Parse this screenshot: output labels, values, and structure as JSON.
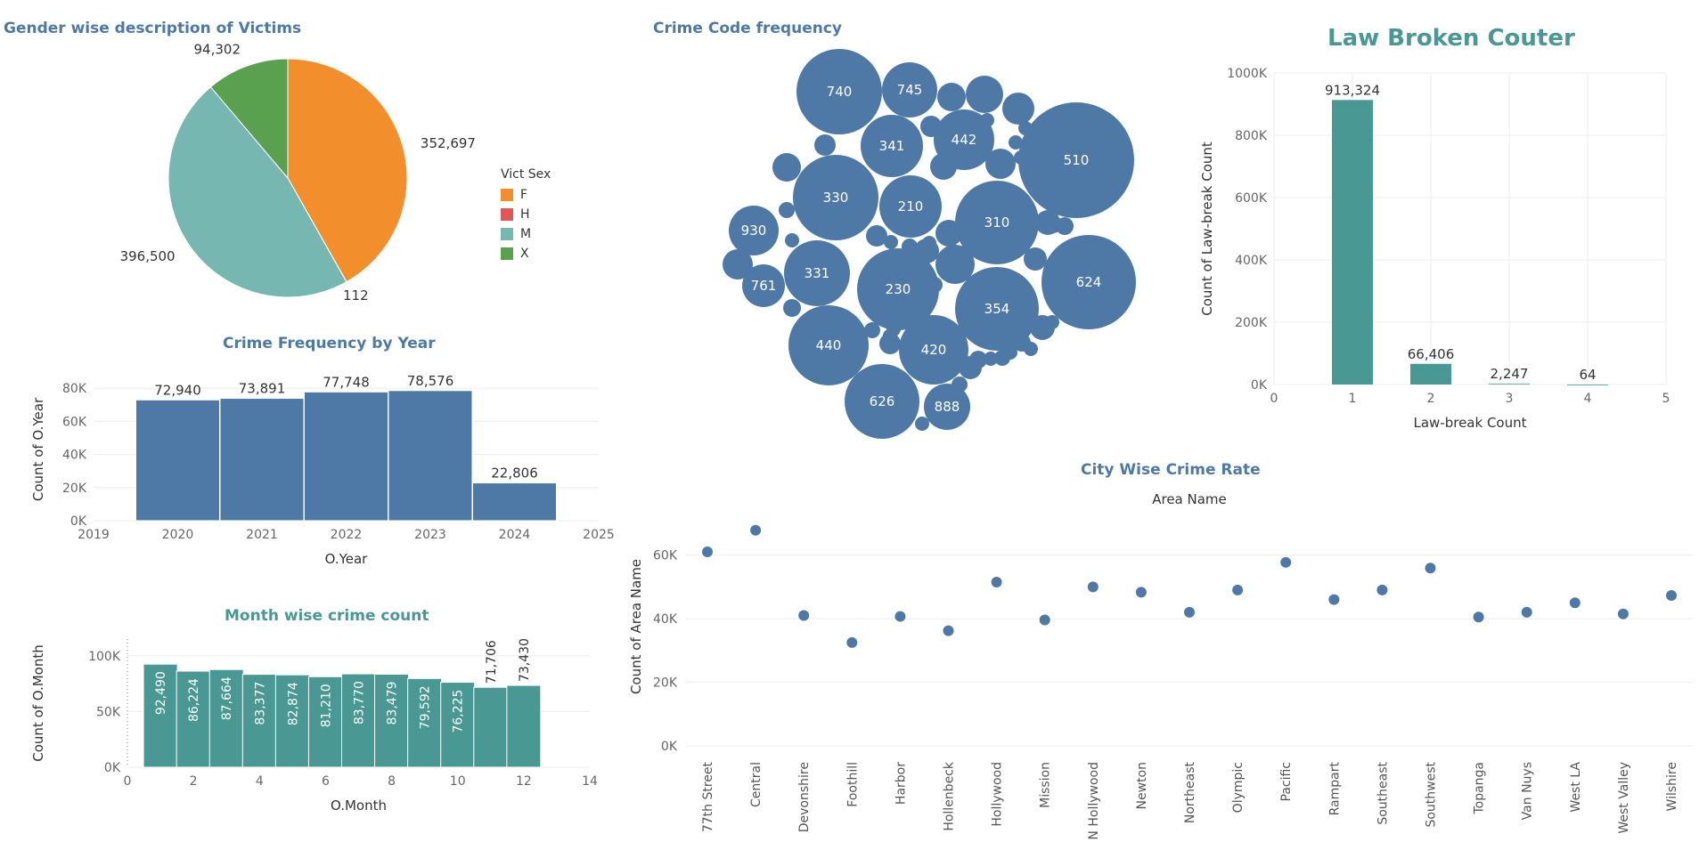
{
  "colors": {
    "title_blue": "#4E79A7",
    "title_teal": "#499894",
    "bar_blue": "#4E79A7",
    "bar_teal": "#499894",
    "grid": "#ececec",
    "axis_text": "#666666"
  },
  "titles": {
    "gender": "Gender wise description of Victims",
    "crime_code": "Crime Code frequency",
    "law": "Law Broken Couter",
    "year": "Crime Frequency by Year",
    "month": "Month wise crime count",
    "city": "City Wise Crime Rate"
  },
  "legend": {
    "title": "Vict Sex"
  },
  "chart_data": [
    {
      "id": "gender",
      "type": "pie",
      "title": "Gender wise description of Victims",
      "legend_title": "Vict Sex",
      "categories": [
        "F",
        "H",
        "M",
        "X"
      ],
      "values": [
        352697,
        112,
        396500,
        94302
      ],
      "labels": [
        "352,697",
        "112",
        "396,500",
        "94,302"
      ],
      "colors": [
        "#F28E2B",
        "#E15759",
        "#76B7B2",
        "#59A14F"
      ],
      "legend_placement": "right"
    },
    {
      "id": "crime_code",
      "type": "bubble",
      "title": "Crime Code frequency",
      "labeled_bubbles": [
        {
          "code": "510",
          "relative_size": 1.0
        },
        {
          "code": "624",
          "relative_size": 0.82
        },
        {
          "code": "354",
          "relative_size": 0.72
        },
        {
          "code": "330",
          "relative_size": 0.74
        },
        {
          "code": "230",
          "relative_size": 0.71
        },
        {
          "code": "740",
          "relative_size": 0.74
        },
        {
          "code": "440",
          "relative_size": 0.69
        },
        {
          "code": "626",
          "relative_size": 0.65
        },
        {
          "code": "310",
          "relative_size": 0.72
        },
        {
          "code": "420",
          "relative_size": 0.59
        },
        {
          "code": "331",
          "relative_size": 0.58
        },
        {
          "code": "210",
          "relative_size": 0.53
        },
        {
          "code": "341",
          "relative_size": 0.54
        },
        {
          "code": "442",
          "relative_size": 0.52
        },
        {
          "code": "745",
          "relative_size": 0.48
        },
        {
          "code": "930",
          "relative_size": 0.43
        },
        {
          "code": "888",
          "relative_size": 0.4
        },
        {
          "code": "761",
          "relative_size": 0.36
        }
      ],
      "unlabeled_bubbles": "many small crime codes"
    },
    {
      "id": "law",
      "type": "bar",
      "title": "Law Broken Couter",
      "x": [
        1,
        2,
        3,
        4
      ],
      "values": [
        913324,
        66406,
        2247,
        64
      ],
      "labels": [
        "913,324",
        "66,406",
        "2,247",
        "64"
      ],
      "xlabel": "Law-break Count",
      "ylabel": "Count of Law-break Count",
      "xlim": [
        0,
        5
      ],
      "ylim": [
        0,
        1000000
      ],
      "xticks": [
        "0",
        "1",
        "2",
        "3",
        "4",
        "5"
      ],
      "yticks": [
        "0K",
        "200K",
        "400K",
        "600K",
        "800K",
        "1000K"
      ],
      "grid": true
    },
    {
      "id": "year",
      "type": "bar",
      "title": "Crime Frequency by Year",
      "x": [
        2020,
        2021,
        2022,
        2023,
        2024
      ],
      "values": [
        72940,
        73891,
        77748,
        78576,
        22806
      ],
      "labels": [
        "72,940",
        "73,891",
        "77,748",
        "78,576",
        "22,806"
      ],
      "xlabel": "O.Year",
      "ylabel": "Count of O.Year",
      "xlim": [
        2019,
        2025
      ],
      "ylim": [
        0,
        86000
      ],
      "xticks": [
        "2019",
        "2020",
        "2021",
        "2022",
        "2023",
        "2024",
        "2025"
      ],
      "yticks": [
        "0K",
        "20K",
        "40K",
        "60K",
        "80K"
      ],
      "grid": true
    },
    {
      "id": "month",
      "type": "bar",
      "title": "Month wise crime count",
      "x": [
        1,
        2,
        3,
        4,
        5,
        6,
        7,
        8,
        9,
        10,
        11,
        12
      ],
      "values": [
        92490,
        86224,
        87664,
        83377,
        82874,
        81210,
        83770,
        83479,
        79592,
        76225,
        71706,
        73430
      ],
      "labels": [
        "92,490",
        "86,224",
        "87,664",
        "83,377",
        "82,874",
        "81,210",
        "83,770",
        "83,479",
        "79,592",
        "76,225",
        "71,706",
        "73,430"
      ],
      "xlabel": "O.Month",
      "ylabel": "Count of O.Month",
      "xlim": [
        0,
        14
      ],
      "ylim": [
        0,
        115000
      ],
      "xticks": [
        "0",
        "2",
        "4",
        "6",
        "8",
        "10",
        "12",
        "14"
      ],
      "yticks": [
        "0K",
        "50K",
        "100K"
      ],
      "grid": true
    },
    {
      "id": "city",
      "type": "scatter",
      "title": "City Wise Crime Rate",
      "column_header": "Area Name",
      "categories": [
        "77th Street",
        "Central",
        "Devonshire",
        "Foothill",
        "Harbor",
        "Hollenbeck",
        "Hollywood",
        "Mission",
        "N Hollywood",
        "Newton",
        "Northeast",
        "Olympic",
        "Pacific",
        "Rampart",
        "Southeast",
        "Southwest",
        "Topanga",
        "Van Nuys",
        "West LA",
        "West Valley",
        "Wilshire"
      ],
      "values": [
        61000,
        67800,
        41000,
        32500,
        40700,
        36200,
        51500,
        39600,
        50000,
        48300,
        42000,
        49000,
        57700,
        46000,
        49000,
        55900,
        40500,
        42000,
        45000,
        41500,
        47300
      ],
      "ylabel": "Count of Area Name",
      "ylim": [
        0,
        75000
      ],
      "yticks": [
        "0K",
        "20K",
        "40K",
        "60K"
      ],
      "grid": true
    }
  ]
}
